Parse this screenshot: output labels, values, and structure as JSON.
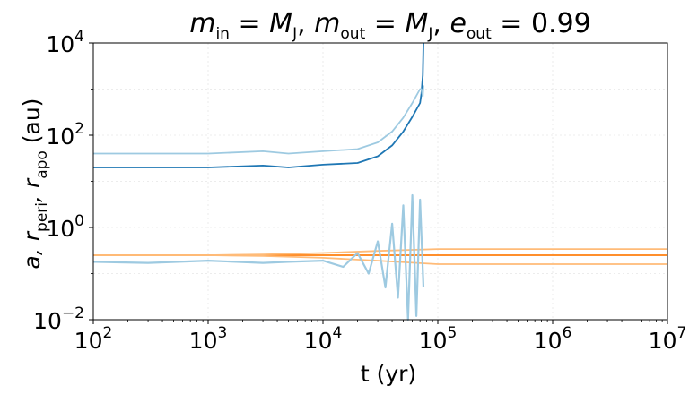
{
  "chart_data": {
    "type": "line",
    "title": {
      "m_in": "M",
      "m_in_sub": "J",
      "m_out": "M",
      "m_out_sub": "J",
      "e_out": "0.99"
    },
    "xlabel": "t (yr)",
    "ylabel_parts": [
      "a, r",
      "peri",
      ", r",
      "apo",
      " (au)"
    ],
    "xscale": "log",
    "yscale": "log",
    "xlim": [
      100,
      10000000
    ],
    "ylim": [
      0.01,
      10000
    ],
    "x_ticks": [
      {
        "base": "10",
        "exp": "2",
        "value": 100
      },
      {
        "base": "10",
        "exp": "3",
        "value": 1000
      },
      {
        "base": "10",
        "exp": "4",
        "value": 10000
      },
      {
        "base": "10",
        "exp": "5",
        "value": 100000
      },
      {
        "base": "10",
        "exp": "6",
        "value": 1000000
      },
      {
        "base": "10",
        "exp": "7",
        "value": 10000000
      }
    ],
    "y_ticks": [
      {
        "base": "10",
        "exp": "−2",
        "value": 0.01
      },
      {
        "base": "10",
        "exp": "0",
        "value": 1
      },
      {
        "base": "10",
        "exp": "2",
        "value": 100
      },
      {
        "base": "10",
        "exp": "4",
        "value": 10000
      }
    ],
    "grid": true,
    "series": [
      {
        "role": "inner_a",
        "color": "#ff7f0e",
        "x": [
          100,
          1000,
          10000,
          100000,
          1000000,
          10000000
        ],
        "y": [
          0.25,
          0.25,
          0.25,
          0.25,
          0.25,
          0.25
        ]
      },
      {
        "role": "inner_apo",
        "color": "#ffbb78",
        "x": [
          100,
          1000,
          3000,
          10000,
          30000,
          100000,
          1000000,
          10000000
        ],
        "y": [
          0.25,
          0.25,
          0.26,
          0.28,
          0.31,
          0.34,
          0.34,
          0.34
        ]
      },
      {
        "role": "inner_peri",
        "color": "#ffbb78",
        "x": [
          100,
          1000,
          3000,
          10000,
          30000,
          100000,
          1000000,
          10000000
        ],
        "y": [
          0.25,
          0.25,
          0.24,
          0.22,
          0.19,
          0.16,
          0.16,
          0.16
        ]
      },
      {
        "role": "outer_a",
        "color": "#1f77b4",
        "x": [
          100,
          300,
          1000,
          3000,
          5000,
          10000,
          20000,
          30000,
          40000,
          50000,
          60000,
          70000,
          72000,
          74000,
          75000
        ],
        "y": [
          20,
          20,
          20,
          22,
          20,
          23,
          25,
          35,
          60,
          120,
          250,
          500,
          800,
          2000,
          10000
        ]
      },
      {
        "role": "outer_apo",
        "color": "#9ecae1",
        "x": [
          100,
          300,
          1000,
          3000,
          5000,
          10000,
          20000,
          30000,
          40000,
          50000,
          60000,
          70000,
          72000,
          74000,
          75000
        ],
        "y": [
          40,
          40,
          40,
          45,
          40,
          45,
          50,
          70,
          120,
          240,
          500,
          1000,
          1000,
          700,
          1200
        ]
      },
      {
        "role": "outer_peri",
        "color": "#9ecae1",
        "x": [
          100,
          300,
          1000,
          3000,
          5000,
          10000,
          15000,
          20000,
          25000,
          30000,
          35000,
          40000,
          45000,
          50000,
          55000,
          60000,
          65000,
          70000,
          75000
        ],
        "y": [
          0.18,
          0.17,
          0.19,
          0.17,
          0.18,
          0.19,
          0.14,
          0.28,
          0.1,
          0.5,
          0.05,
          1.2,
          0.03,
          3,
          0.01,
          5,
          0.012,
          4,
          0.05
        ]
      }
    ]
  }
}
